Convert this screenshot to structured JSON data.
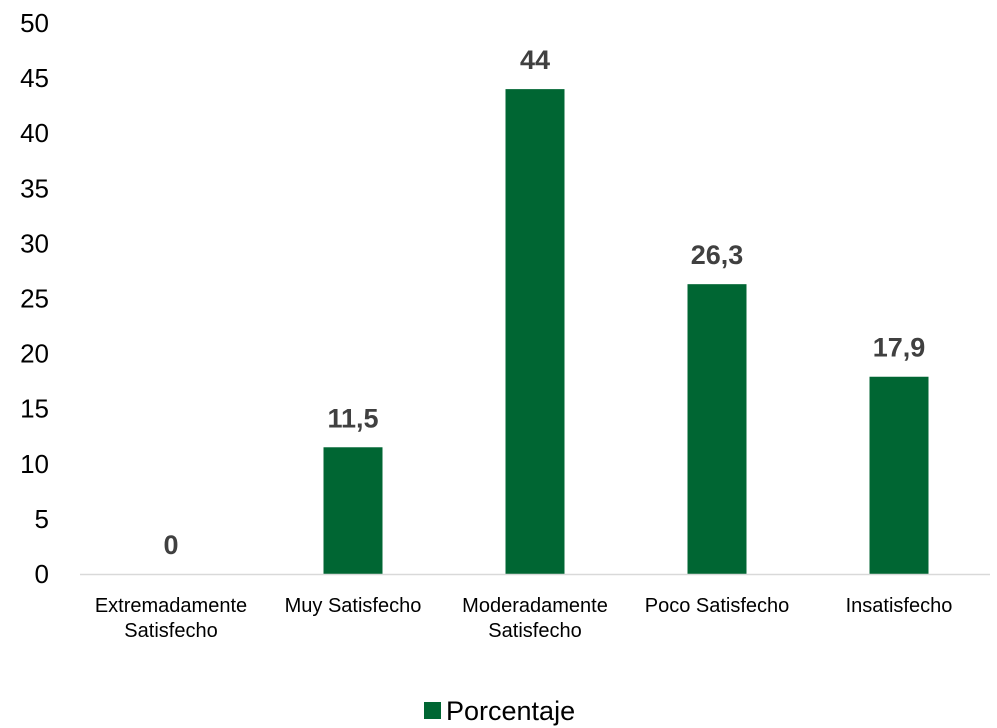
{
  "chart_data": {
    "type": "bar",
    "categories": [
      "Extremadamente Satisfecho",
      "Muy Satisfecho",
      "Moderadamente Satisfecho",
      "Poco Satisfecho",
      "Insatisfecho"
    ],
    "category_lines": [
      [
        "Extremadamente",
        "Satisfecho"
      ],
      [
        "Muy Satisfecho"
      ],
      [
        "Moderadamente",
        "Satisfecho"
      ],
      [
        "Poco Satisfecho"
      ],
      [
        "Insatisfecho"
      ]
    ],
    "series": [
      {
        "name": "Porcentaje",
        "values": [
          0,
          11.5,
          44,
          26.3,
          17.9
        ],
        "labels": [
          "0",
          "11,5",
          "44",
          "26,3",
          "17,9"
        ],
        "color": "#006633"
      }
    ],
    "title": "",
    "xlabel": "",
    "ylabel": "",
    "ylim": [
      0,
      50
    ],
    "yticks": [
      0,
      5,
      10,
      15,
      20,
      25,
      30,
      35,
      40,
      45,
      50
    ],
    "grid": false,
    "legend": "bottom-center"
  }
}
